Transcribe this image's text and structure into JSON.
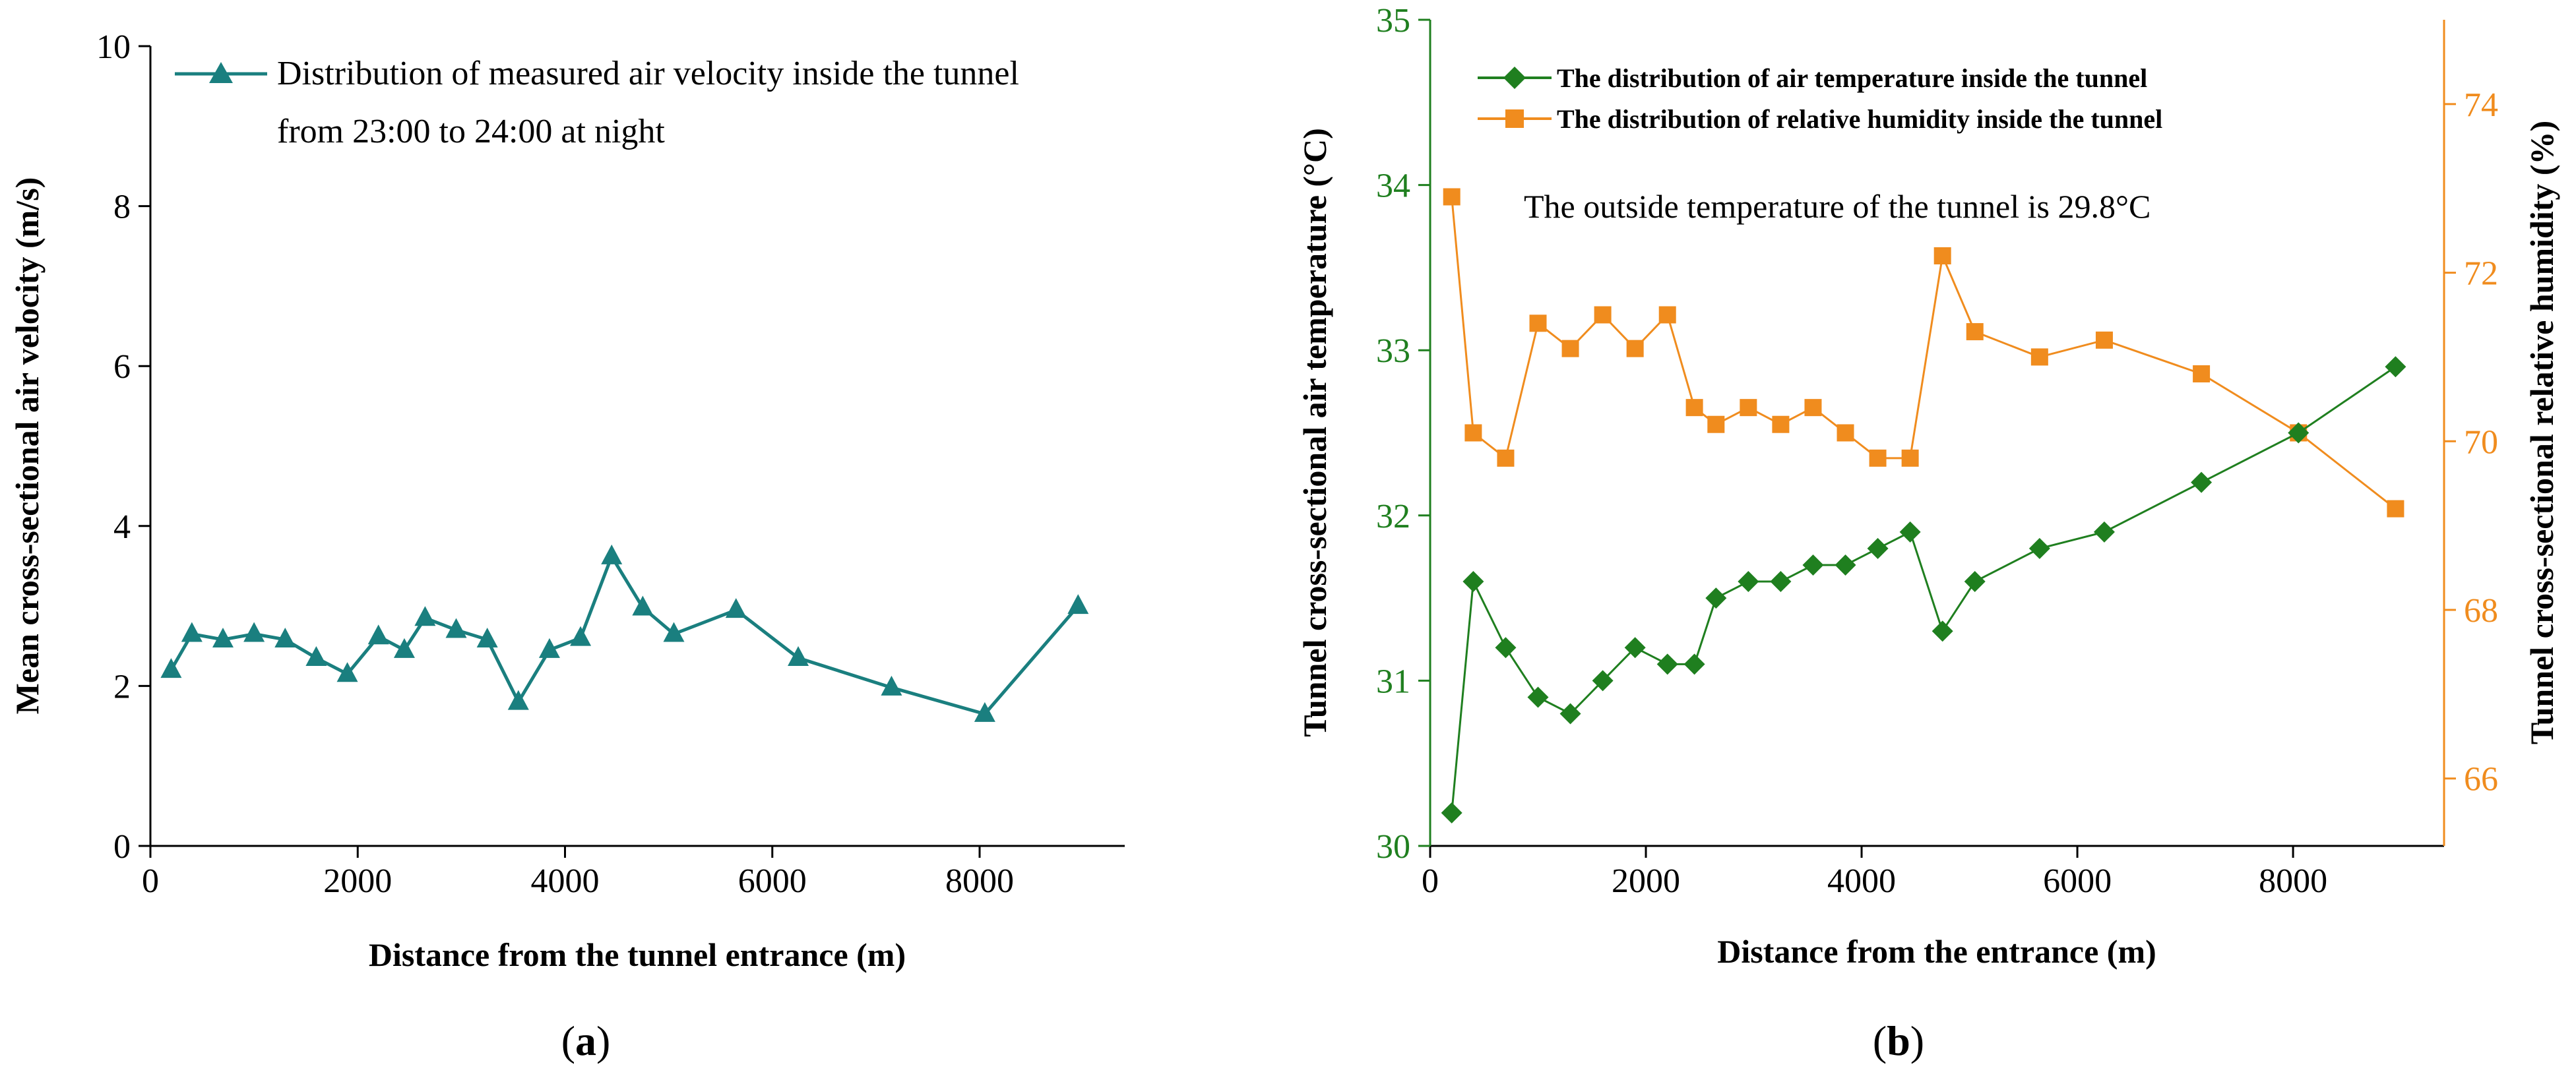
{
  "chart_data": [
    {
      "type": "line",
      "panel_label_open": "(",
      "panel_label": "a",
      "panel_label_close": ")",
      "xlabel": "Distance from the tunnel entrance (m)",
      "ylabel": "Mean cross-sectional air velocity  (m/s)",
      "xlim": [
        0,
        9400
      ],
      "ylim": [
        0,
        10
      ],
      "x_ticks": [
        "0",
        "2000",
        "4000",
        "6000",
        "8000"
      ],
      "y_ticks": [
        "0",
        "2",
        "4",
        "6",
        "8",
        "10"
      ],
      "legend": [
        "Distribution of measured air velocity inside the tunnel",
        "from 23:00 to 24:00 at night"
      ],
      "series": [
        {
          "name": "Distribution of measured air velocity inside the tunnel from 23:00 to 24:00 at night",
          "color": "#1a7f7f",
          "marker": "triangle",
          "x": [
            200,
            400,
            700,
            1000,
            1300,
            1600,
            1900,
            2200,
            2450,
            2650,
            2950,
            3250,
            3550,
            3850,
            4150,
            4450,
            4750,
            5050,
            5650,
            6250,
            7150,
            8050,
            8950
          ],
          "y": [
            2.2,
            2.65,
            2.58,
            2.65,
            2.58,
            2.35,
            2.15,
            2.62,
            2.45,
            2.85,
            2.7,
            2.58,
            1.8,
            2.45,
            2.6,
            3.62,
            2.98,
            2.65,
            2.95,
            2.35,
            1.98,
            1.65,
            3.0
          ]
        }
      ]
    },
    {
      "type": "line",
      "panel_label_open": "(",
      "panel_label": "b",
      "panel_label_close": ")",
      "xlabel": "Distance from the entrance  (m)",
      "ylabel": "Tunnel cross-sectional air temperature  (°C)",
      "y2label": "Tunnel cross-sectional relative humidity  (%)",
      "xlim": [
        0,
        9400
      ],
      "ylim": [
        30,
        35
      ],
      "y2lim": [
        65.2,
        75
      ],
      "x_ticks": [
        "0",
        "2000",
        "4000",
        "6000",
        "8000"
      ],
      "y_ticks": [
        "30",
        "31",
        "32",
        "33",
        "34",
        "35"
      ],
      "y2_ticks": [
        "66",
        "68",
        "70",
        "72",
        "74"
      ],
      "annotation": "The outside temperature of the tunnel is 29.8°C",
      "series": [
        {
          "name": "The distribution of air temperature inside the tunnel",
          "axis": "left",
          "color": "#1f7f1f",
          "marker": "diamond",
          "x": [
            200,
            400,
            700,
            1000,
            1300,
            1600,
            1900,
            2200,
            2450,
            2650,
            2950,
            3250,
            3550,
            3850,
            4150,
            4450,
            4750,
            5050,
            5650,
            6250,
            7150,
            8050,
            8950
          ],
          "y": [
            30.2,
            31.6,
            31.2,
            30.9,
            30.8,
            31.0,
            31.2,
            31.1,
            31.1,
            31.5,
            31.6,
            31.6,
            31.7,
            31.7,
            31.8,
            31.9,
            31.3,
            31.6,
            31.8,
            31.9,
            32.2,
            32.5,
            32.9
          ]
        },
        {
          "name": "The distribution of relative humidity inside the tunnel",
          "axis": "right",
          "color": "#f08c1e",
          "marker": "square",
          "x": [
            200,
            400,
            700,
            1000,
            1300,
            1600,
            1900,
            2200,
            2450,
            2650,
            2950,
            3250,
            3550,
            3850,
            4150,
            4450,
            4750,
            5050,
            5650,
            6250,
            7150,
            8050,
            8950
          ],
          "y": [
            72.9,
            70.1,
            69.8,
            71.4,
            71.1,
            71.5,
            71.1,
            71.5,
            70.4,
            70.2,
            70.4,
            70.2,
            70.4,
            70.1,
            69.8,
            69.8,
            72.2,
            71.3,
            71.0,
            71.2,
            70.8,
            70.1,
            69.2
          ]
        }
      ]
    }
  ]
}
